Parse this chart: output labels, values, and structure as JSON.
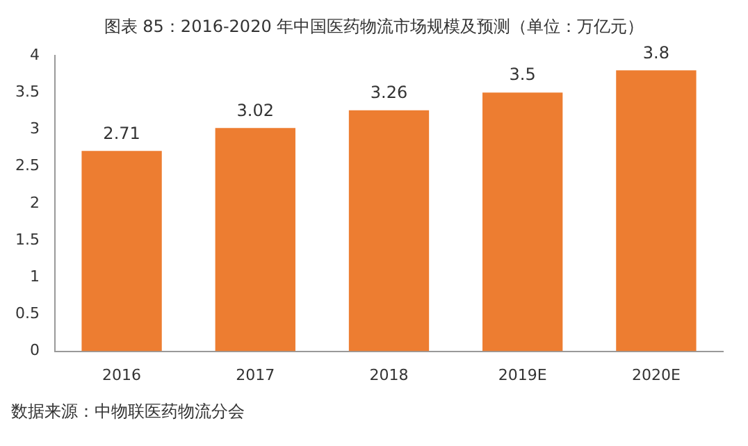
{
  "chart_data": {
    "type": "bar",
    "title": "图表 85：2016-2020 年中国医药物流市场规模及预测（单位：万亿元）",
    "categories": [
      "2016",
      "2017",
      "2018",
      "2019E",
      "2020E"
    ],
    "values": [
      2.71,
      3.02,
      3.26,
      3.5,
      3.8
    ],
    "color": "#ed7d31",
    "ylim": [
      0,
      4
    ],
    "yticks": [
      0,
      0.5,
      1,
      1.5,
      2,
      2.5,
      3,
      3.5,
      4
    ],
    "data_labels": true,
    "grid": false,
    "legend": false,
    "annotations": [
      "数据来源：中物联医药物流分会"
    ]
  }
}
